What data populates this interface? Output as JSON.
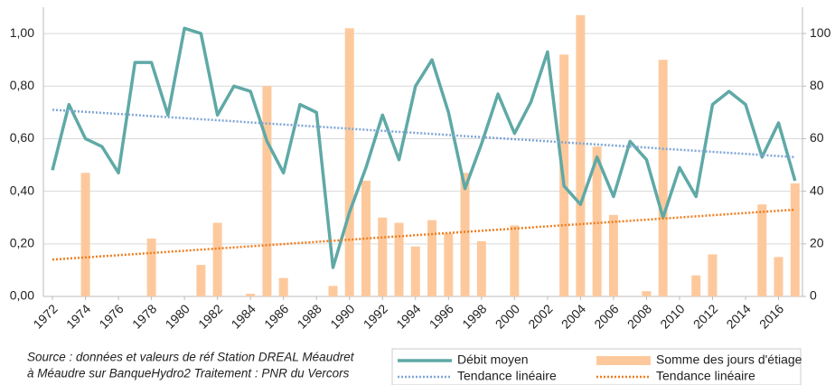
{
  "chart_data": {
    "type": "combo",
    "x": [
      1972,
      1973,
      1974,
      1975,
      1976,
      1977,
      1978,
      1979,
      1980,
      1981,
      1982,
      1983,
      1984,
      1985,
      1986,
      1987,
      1988,
      1989,
      1990,
      1991,
      1992,
      1993,
      1994,
      1995,
      1996,
      1997,
      1998,
      1999,
      2000,
      2001,
      2002,
      2003,
      2004,
      2005,
      2006,
      2007,
      2008,
      2009,
      2010,
      2011,
      2012,
      2013,
      2014,
      2015,
      2016,
      2017
    ],
    "xlim": [
      1971.45,
      2017.45
    ],
    "xticks": [
      1972,
      1974,
      1976,
      1978,
      1980,
      1982,
      1984,
      1986,
      1988,
      1990,
      1992,
      1994,
      1996,
      1998,
      2000,
      2002,
      2004,
      2006,
      2008,
      2010,
      2012,
      2014,
      2016
    ],
    "ylim": [
      0,
      1.1
    ],
    "yticks": [
      {
        "value": 0,
        "label": "0,00"
      },
      {
        "value": 0.2,
        "label": "0,20"
      },
      {
        "value": 0.4,
        "label": "0,40"
      },
      {
        "value": 0.6,
        "label": "0,60"
      },
      {
        "value": 0.8,
        "label": "0,80"
      },
      {
        "value": 1.0,
        "label": "1,00"
      }
    ],
    "y2lim": [
      0,
      110
    ],
    "y2ticks": [
      0,
      20,
      40,
      60,
      80,
      100
    ],
    "grid": true,
    "series": [
      {
        "name": "Débit moyen",
        "type": "line",
        "color": "#5fa9a6",
        "values": [
          0.48,
          0.73,
          0.6,
          0.57,
          0.47,
          0.89,
          0.89,
          0.69,
          1.02,
          1.0,
          0.69,
          0.8,
          0.78,
          0.59,
          0.47,
          0.73,
          0.7,
          0.11,
          0.32,
          0.49,
          0.69,
          0.52,
          0.8,
          0.9,
          0.7,
          0.41,
          0.58,
          0.77,
          0.62,
          0.74,
          0.93,
          0.42,
          0.35,
          0.53,
          0.38,
          0.59,
          0.52,
          0.3,
          0.49,
          0.38,
          0.73,
          0.78,
          0.73,
          0.53,
          0.66,
          0.44
        ]
      },
      {
        "name": "Somme des jours d'étiage",
        "type": "bar",
        "axis": "y2",
        "color": "#fdc99c",
        "values": [
          0,
          0,
          47,
          0,
          0,
          0,
          22,
          0,
          0,
          12,
          28,
          0,
          1,
          80,
          7,
          0,
          0,
          4,
          102,
          44,
          30,
          28,
          19,
          29,
          24,
          47,
          21,
          0,
          27,
          0,
          0,
          92,
          107,
          57,
          31,
          0,
          2,
          90,
          0,
          8,
          16,
          0,
          0,
          35,
          15,
          43
        ]
      },
      {
        "name": "Tendance linéaire",
        "type": "trend",
        "color": "#7fa6d6",
        "x": [
          1972,
          2017
        ],
        "values": [
          0.71,
          0.53
        ]
      },
      {
        "name": "Tendance linéaire",
        "type": "trend",
        "axis": "y2",
        "color": "#ee7d1f",
        "x": [
          1972,
          2017
        ],
        "values": [
          14,
          33
        ]
      }
    ],
    "annotations": [
      "Source : données et valeurs de réf Station DREAL Méaudret",
      "à Méaudre sur BanqueHydro2  Traitement :  PNR du Vercors"
    ]
  }
}
